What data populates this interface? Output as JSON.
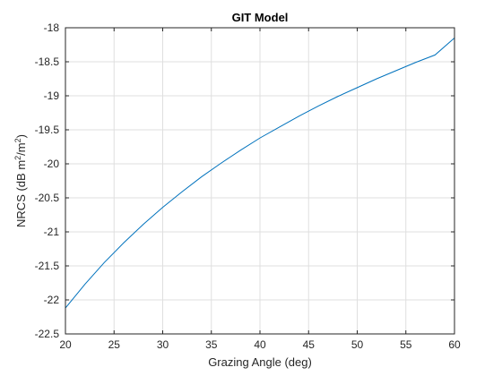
{
  "chart_data": {
    "type": "line",
    "title": "GIT Model",
    "xlabel": "Grazing Angle (deg)",
    "ylabel": {
      "prefix": "NRCS  (dB  m",
      "sup1": "2",
      "mid": "/m",
      "sup2": "2",
      "suffix": ")"
    },
    "xlim": [
      20,
      60
    ],
    "ylim": [
      -22.5,
      -18
    ],
    "xticks": [
      20,
      25,
      30,
      35,
      40,
      45,
      50,
      55,
      60
    ],
    "yticks": [
      -18,
      -18.5,
      -19,
      -19.5,
      -20,
      -20.5,
      -21,
      -21.5,
      -22,
      -22.5
    ],
    "grid": true,
    "series": [
      {
        "color": "#0072bd",
        "x": [
          20,
          22,
          24,
          26,
          28,
          30,
          32,
          34,
          36,
          38,
          40,
          42,
          44,
          46,
          48,
          50,
          52,
          54,
          56,
          58,
          60
        ],
        "y": [
          -22.12,
          -21.77,
          -21.45,
          -21.16,
          -20.89,
          -20.64,
          -20.41,
          -20.19,
          -19.99,
          -19.8,
          -19.62,
          -19.46,
          -19.3,
          -19.15,
          -19.01,
          -18.88,
          -18.75,
          -18.63,
          -18.51,
          -18.4,
          -18.15
        ]
      }
    ]
  }
}
